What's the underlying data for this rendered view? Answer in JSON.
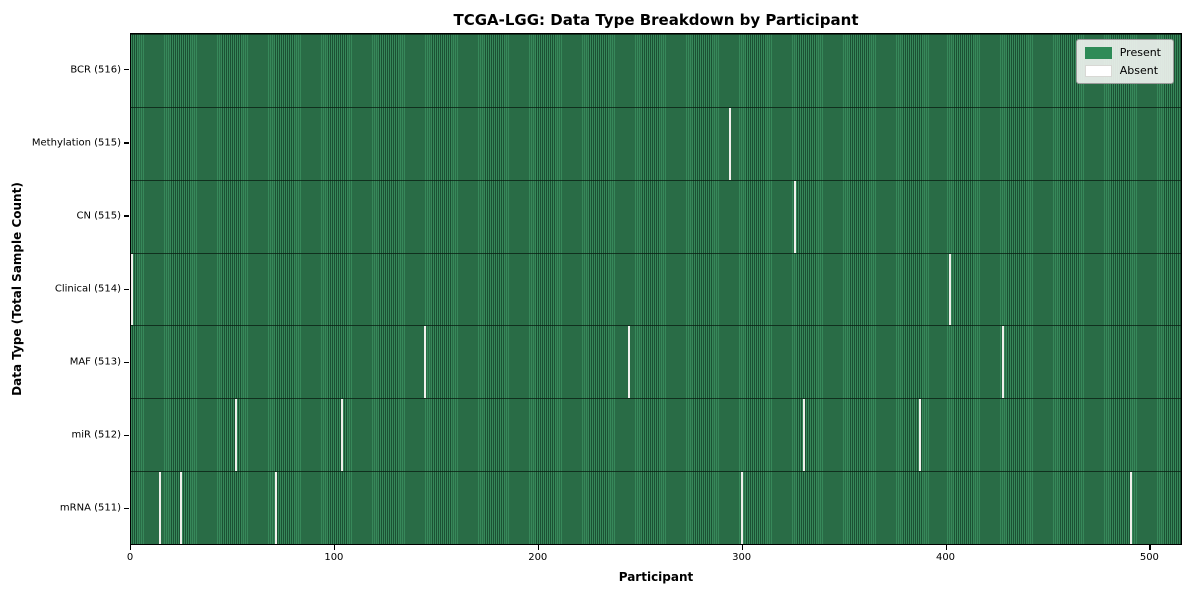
{
  "chart_data": {
    "type": "heatmap",
    "title": "TCGA-LGG: Data Type Breakdown by Participant",
    "xlabel": "Participant",
    "ylabel": "Data Type (Total Sample Count)",
    "x_ticks": [
      0,
      100,
      200,
      300,
      400,
      500
    ],
    "x_range": [
      0,
      516
    ],
    "n_participants": 516,
    "grid": false,
    "legend": {
      "position": "upper right",
      "entries": [
        {
          "label": "Present",
          "color": "#2e8b57"
        },
        {
          "label": "Absent",
          "color": "#ffffff"
        }
      ]
    },
    "rows": [
      {
        "label": "BCR (516)",
        "data_type": "BCR",
        "present_count": 516,
        "absent_participants": []
      },
      {
        "label": "Methylation (515)",
        "data_type": "Methylation",
        "present_count": 515,
        "absent_participants": [
          294
        ]
      },
      {
        "label": "CN (515)",
        "data_type": "CN",
        "present_count": 515,
        "absent_participants": [
          326
        ]
      },
      {
        "label": "Clinical (514)",
        "data_type": "Clinical",
        "present_count": 514,
        "absent_participants": [
          0,
          402
        ]
      },
      {
        "label": "MAF (513)",
        "data_type": "MAF",
        "present_count": 513,
        "absent_participants": [
          144,
          244,
          428
        ]
      },
      {
        "label": "miR (512)",
        "data_type": "miR",
        "present_count": 512,
        "absent_participants": [
          51,
          103,
          330,
          387
        ]
      },
      {
        "label": "mRNA (511)",
        "data_type": "mRNA",
        "present_count": 511,
        "absent_participants": [
          14,
          24,
          71,
          300,
          491
        ]
      }
    ],
    "colors": {
      "present": "#2e8b57",
      "present_stripe_dark": "#1b5133",
      "absent": "#f0f0ec",
      "row_divider": "rgba(10,28,17,0.75)",
      "plot_border": "#000000"
    }
  }
}
